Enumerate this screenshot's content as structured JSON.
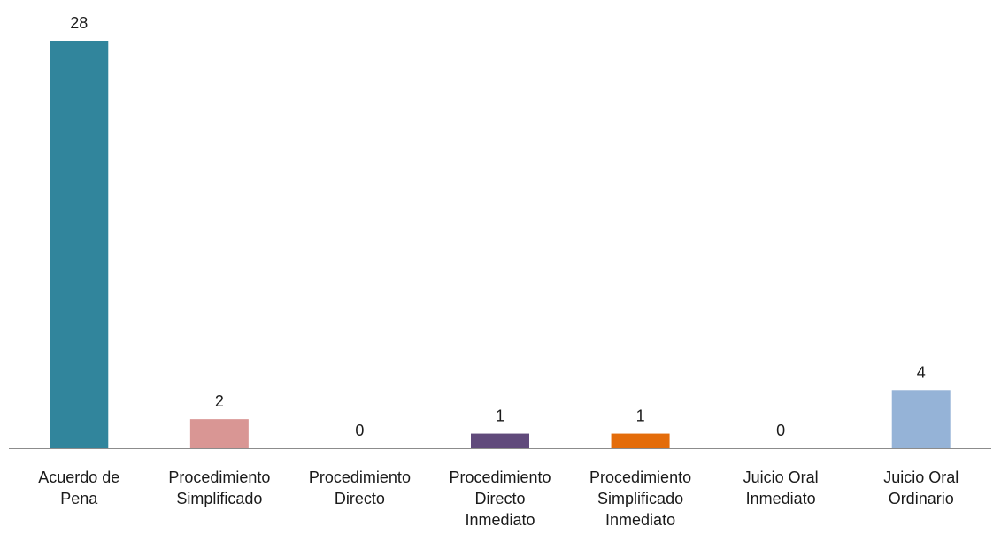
{
  "chart_data": {
    "type": "bar",
    "title": "",
    "xlabel": "",
    "ylabel": "",
    "ylim": [
      0,
      28
    ],
    "grid": false,
    "legend": "none",
    "categories": [
      "Acuerdo de Pena",
      "Procedimiento Simplificado",
      "Procedimiento Directo",
      "Procedimiento Directo Inmediato",
      "Procedimiento Simplificado Inmediato",
      "Juicio Oral Inmediato",
      "Juicio Oral Ordinario"
    ],
    "category_lines": [
      [
        "Acuerdo de",
        "Pena"
      ],
      [
        "Procedimiento",
        "Simplificado"
      ],
      [
        "Procedimiento",
        "Directo"
      ],
      [
        "Procedimiento",
        "Directo",
        "Inmediato"
      ],
      [
        "Procedimiento",
        "Simplificado",
        "Inmediato"
      ],
      [
        "Juicio Oral",
        "Inmediato"
      ],
      [
        "Juicio Oral",
        "Ordinario"
      ]
    ],
    "values": [
      28,
      2,
      0,
      1,
      1,
      0,
      4
    ],
    "colors": [
      "#31859C",
      "#D99694",
      "#7F7F7F",
      "#604A7B",
      "#E46C0A",
      "#7F7F7F",
      "#95B3D7"
    ],
    "axis_color": "#8C8C8C"
  }
}
